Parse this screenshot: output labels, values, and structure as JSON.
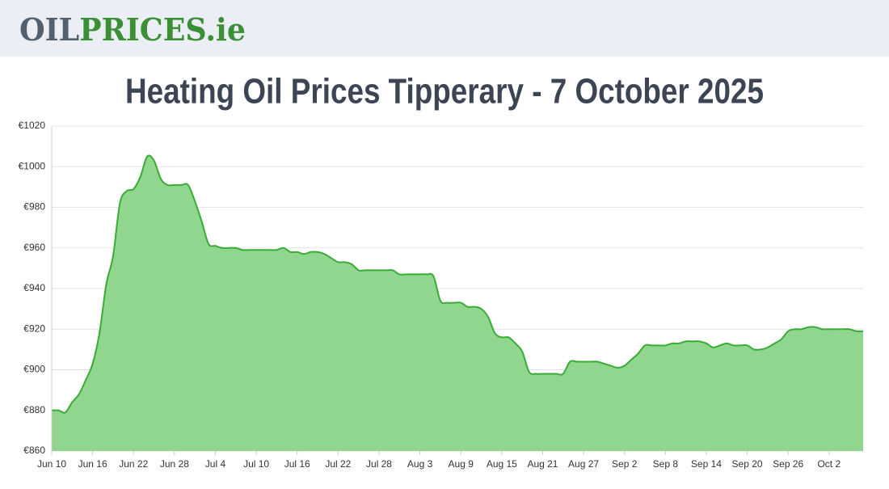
{
  "header": {
    "logo": {
      "part1": "OIL",
      "part2": "PRICES.ie"
    }
  },
  "chart_data": {
    "type": "area",
    "title": "Heating Oil Prices Tipperary - 7 October 2025",
    "categories": [
      "Jun 10",
      null,
      null,
      null,
      null,
      null,
      "Jun 16",
      null,
      null,
      null,
      null,
      null,
      "Jun 22",
      null,
      null,
      null,
      null,
      null,
      "Jun 28",
      null,
      null,
      null,
      null,
      null,
      "Jul 4",
      null,
      null,
      null,
      null,
      null,
      "Jul 10",
      null,
      null,
      null,
      null,
      null,
      "Jul 16",
      null,
      null,
      null,
      null,
      null,
      "Jul 22",
      null,
      null,
      null,
      null,
      null,
      "Jul 28",
      null,
      null,
      null,
      null,
      null,
      "Aug 3",
      null,
      null,
      null,
      null,
      null,
      "Aug 9",
      null,
      null,
      null,
      null,
      null,
      "Aug 15",
      null,
      null,
      null,
      null,
      null,
      "Aug 21",
      null,
      null,
      null,
      null,
      null,
      "Aug 27",
      null,
      null,
      null,
      null,
      null,
      "Sep 2",
      null,
      null,
      null,
      null,
      null,
      "Sep 8",
      null,
      null,
      null,
      null,
      null,
      "Sep 14",
      null,
      null,
      null,
      null,
      null,
      "Sep 20",
      null,
      null,
      null,
      null,
      null,
      "Sep 26",
      null,
      null,
      null,
      null,
      null,
      "Oct 2",
      null,
      null,
      null,
      null,
      null
    ],
    "values": [
      880,
      880,
      879,
      884,
      888,
      895,
      903,
      918,
      942,
      956,
      982,
      988,
      989,
      995,
      1005,
      1003,
      994,
      991,
      991,
      991,
      991,
      983,
      973,
      962,
      961,
      960,
      960,
      960,
      959,
      959,
      959,
      959,
      959,
      959,
      960,
      958,
      958,
      957,
      958,
      958,
      957,
      955,
      953,
      953,
      952,
      949,
      949,
      949,
      949,
      949,
      949,
      947,
      947,
      947,
      947,
      947,
      946,
      934,
      933,
      933,
      933,
      931,
      931,
      930,
      926,
      918,
      916,
      916,
      913,
      909,
      899,
      898,
      898,
      898,
      898,
      898,
      904,
      904,
      904,
      904,
      904,
      903,
      902,
      901,
      902,
      905,
      908,
      912,
      912,
      912,
      912,
      913,
      913,
      914,
      914,
      914,
      913,
      911,
      912,
      913,
      912,
      912,
      912,
      910,
      910,
      911,
      913,
      915,
      919,
      920,
      920,
      921,
      921,
      920,
      920,
      920,
      920,
      920,
      919,
      919
    ],
    "color": "#3aab36",
    "fill_color": "#91d68f",
    "ylim": [
      860,
      1020
    ],
    "yticks": [
      {
        "value": 860,
        "label": "€860"
      },
      {
        "value": 880,
        "label": "€880"
      },
      {
        "value": 900,
        "label": "€900"
      },
      {
        "value": 920,
        "label": "€920"
      },
      {
        "value": 940,
        "label": "€940"
      },
      {
        "value": 960,
        "label": "€960"
      },
      {
        "value": 980,
        "label": "€980"
      },
      {
        "value": 1000,
        "label": "€1000"
      },
      {
        "value": 1020,
        "label": "€1020"
      }
    ],
    "grid": true
  }
}
